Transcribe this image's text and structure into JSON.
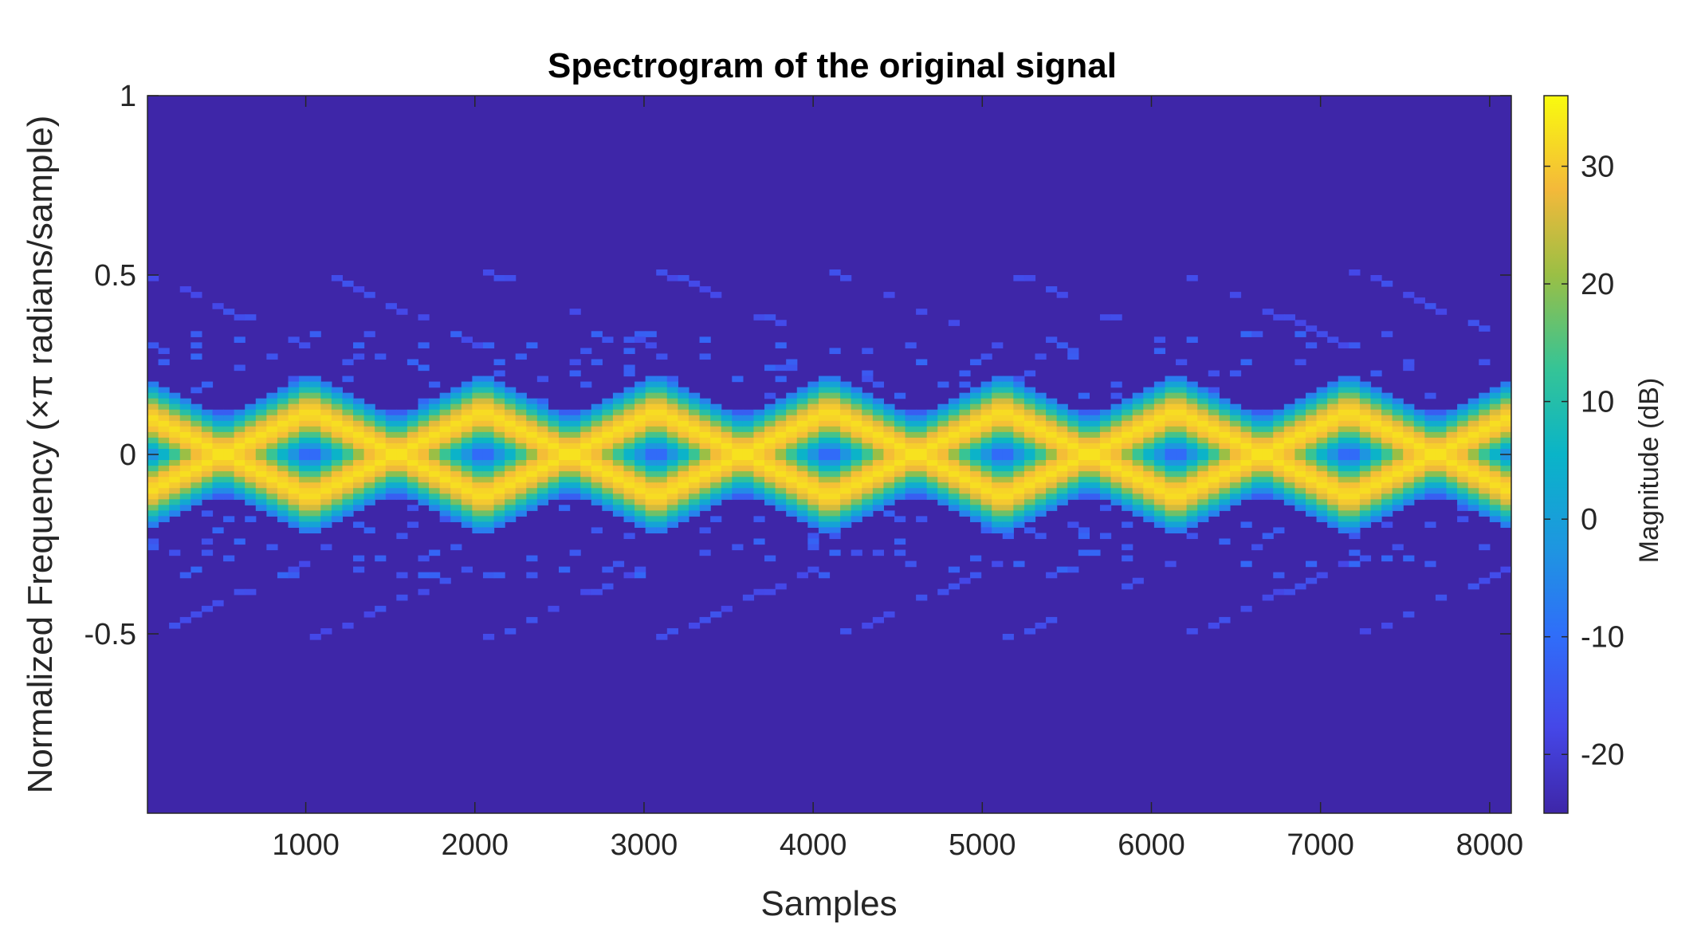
{
  "chart_data": {
    "type": "heatmap",
    "title": "Spectrogram of the original signal",
    "xlabel": "Samples",
    "ylabel": "Normalized Frequency (×π radians/sample)",
    "xlim": [
      64,
      8128
    ],
    "ylim": [
      -1,
      1
    ],
    "xticks": [
      1000,
      2000,
      3000,
      4000,
      5000,
      6000,
      7000,
      8000
    ],
    "xtick_labels": [
      "1000",
      "2000",
      "3000",
      "4000",
      "5000",
      "6000",
      "7000",
      "8000"
    ],
    "yticks": [
      1,
      0.5,
      0,
      -0.5
    ],
    "ytick_labels": [
      "1",
      "0.5",
      "0",
      "-0.5"
    ],
    "colorbar": {
      "label": "Magnitude (dB)",
      "range": [
        -25,
        36
      ],
      "ticks": [
        30,
        20,
        10,
        0,
        -10,
        -20
      ],
      "tick_labels": [
        "30",
        "20",
        "10",
        "0",
        "-10",
        "-20"
      ],
      "colormap": "parula"
    },
    "signal": {
      "description_free": true,
      "chirp_period_samples": 1024,
      "ridge_peak_frequency": 0.12,
      "ridge_peak_samples": [
        0,
        1024,
        2048,
        3072,
        4096,
        5120,
        6144,
        7168,
        8192
      ],
      "ridge_crossing_samples": [
        512,
        1536,
        2560,
        3584,
        4608,
        5632,
        6656,
        7680
      ],
      "ridge_level_db": 33,
      "background_level_db": -24,
      "alias_peak_frequency": 0.52
    }
  },
  "colors": {
    "axes": "#262626",
    "background_cell": "#3e26a8"
  }
}
